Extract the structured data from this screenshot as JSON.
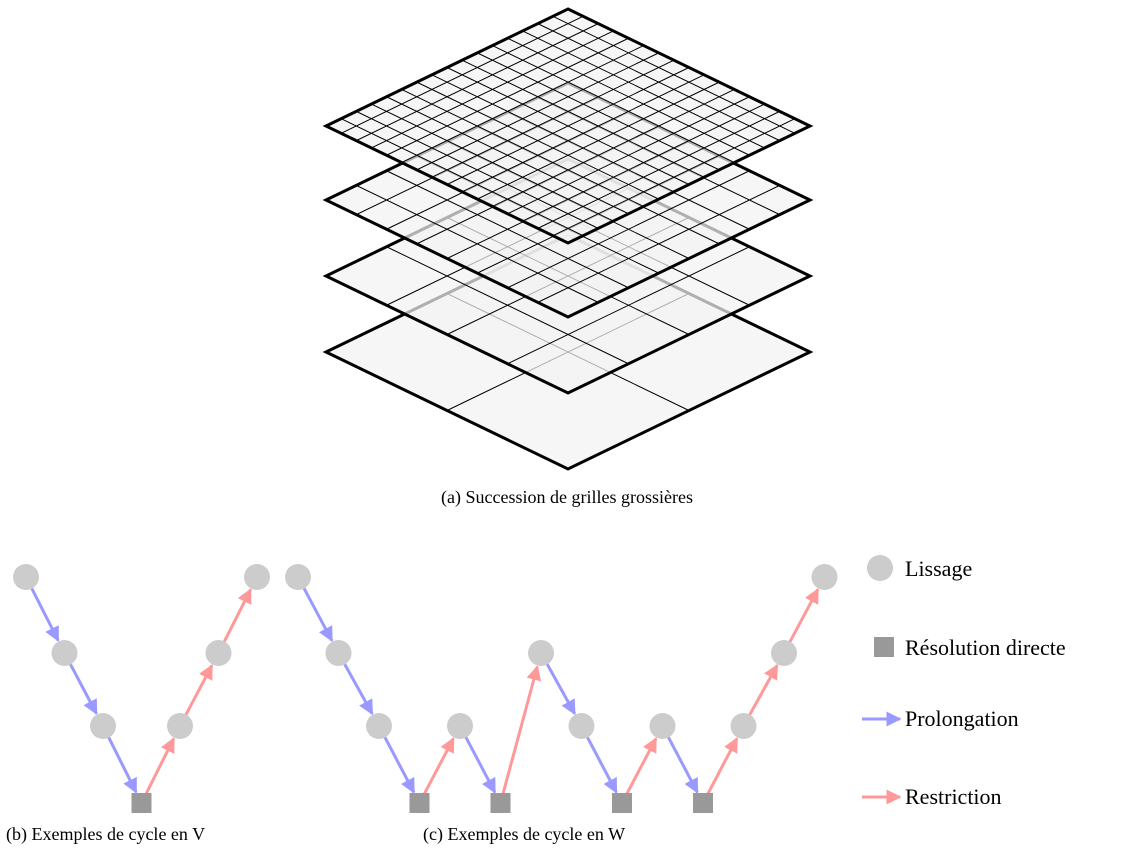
{
  "captions": {
    "a": "(a) Succession de grilles grossières",
    "b": "(b) Exemples de cycle en V",
    "c": "(c) Exemples de cycle en W"
  },
  "legend": {
    "smoothing": "Lissage",
    "direct_solve": "Résolution directe",
    "prolongation": "Prolongation",
    "restriction": "Restriction"
  },
  "colors": {
    "smoothing_node": "#cccccc",
    "direct_solve_node": "#999999",
    "prolongation_arrow": "#9999ff",
    "restriction_arrow": "#ff9999",
    "grid_fill": "#f2f2f2",
    "grid_line": "#000000"
  },
  "grids": [
    {
      "level": 1,
      "cells_per_side": 2
    },
    {
      "level": 2,
      "cells_per_side": 4
    },
    {
      "level": 3,
      "cells_per_side": 8
    },
    {
      "level": 4,
      "cells_per_side": 16
    }
  ],
  "cycles": {
    "v_cycle": {
      "levels": [
        0,
        1,
        2,
        3,
        2,
        1,
        0
      ],
      "coarsest_level": 3
    },
    "w_cycle": {
      "levels": [
        0,
        1,
        2,
        3,
        2,
        3,
        1,
        2,
        3,
        2,
        3,
        2,
        1,
        0
      ],
      "coarsest_level": 3
    }
  }
}
